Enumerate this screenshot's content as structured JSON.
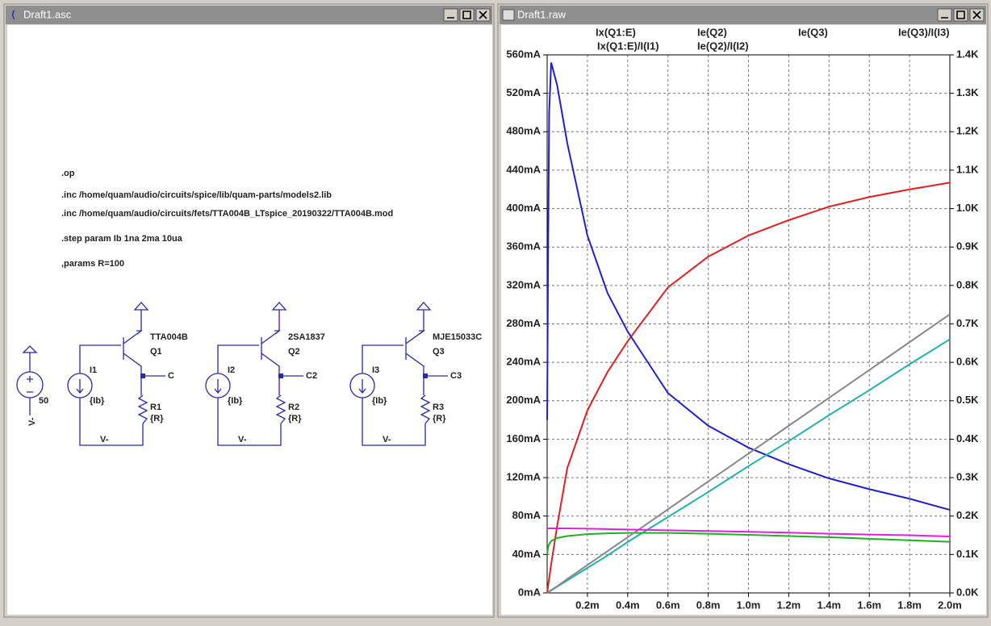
{
  "windows": [
    {
      "title": "Draft1.asc"
    },
    {
      "title": "Draft1.raw"
    }
  ],
  "schematic": {
    "directives": [
      ".op",
      ".inc /home/quam/audio/circuits/spice/lib/quam-parts/models2.lib",
      ".inc /home/quam/audio/circuits/fets/TTA004B_LTspice_20190322/TTA004B.mod",
      ".step param Ib 1na 2ma 10ua",
      ",params R=100"
    ],
    "supply": {
      "value": "50",
      "net": "V-"
    },
    "stages": [
      {
        "transistor": "TTA004B",
        "ref": "Q1",
        "source": "I1",
        "source_value": "{Ib}",
        "resistor": "R1",
        "resistor_value": "{R}",
        "output": "C",
        "ground": "V-"
      },
      {
        "transistor": "2SA1837",
        "ref": "Q2",
        "source": "I2",
        "source_value": "{Ib}",
        "resistor": "R2",
        "resistor_value": "{R}",
        "output": "C2",
        "ground": "V-"
      },
      {
        "transistor": "MJE15033C",
        "ref": "Q3",
        "source": "I3",
        "source_value": "{Ib}",
        "resistor": "R3",
        "resistor_value": "{R}",
        "output": "C3",
        "ground": "V-"
      }
    ]
  },
  "chart_data": {
    "type": "line",
    "x": [
      0,
      0.005,
      0.01,
      0.02,
      0.05,
      0.1,
      0.2,
      0.3,
      0.4,
      0.6,
      0.8,
      1.0,
      1.2,
      1.4,
      1.6,
      1.8,
      2.0
    ],
    "xlim": [
      0,
      2
    ],
    "xticks": [
      {
        "value": 0.2,
        "label": "0.2m"
      },
      {
        "value": 0.4,
        "label": "0.4m"
      },
      {
        "value": 0.6,
        "label": "0.6m"
      },
      {
        "value": 0.8,
        "label": "0.8m"
      },
      {
        "value": 1.0,
        "label": "1.0m"
      },
      {
        "value": 1.2,
        "label": "1.2m"
      },
      {
        "value": 1.4,
        "label": "1.4m"
      },
      {
        "value": 1.6,
        "label": "1.6m"
      },
      {
        "value": 1.8,
        "label": "1.8m"
      },
      {
        "value": 2.0,
        "label": "2.0m"
      }
    ],
    "ylim": [
      0,
      560
    ],
    "yticks": [
      {
        "value": 0,
        "label": "0mA"
      },
      {
        "value": 40,
        "label": "40mA"
      },
      {
        "value": 80,
        "label": "80mA"
      },
      {
        "value": 120,
        "label": "120mA"
      },
      {
        "value": 160,
        "label": "160mA"
      },
      {
        "value": 200,
        "label": "200mA"
      },
      {
        "value": 240,
        "label": "240mA"
      },
      {
        "value": 280,
        "label": "280mA"
      },
      {
        "value": 320,
        "label": "320mA"
      },
      {
        "value": 360,
        "label": "360mA"
      },
      {
        "value": 400,
        "label": "400mA"
      },
      {
        "value": 440,
        "label": "440mA"
      },
      {
        "value": 480,
        "label": "480mA"
      },
      {
        "value": 520,
        "label": "520mA"
      },
      {
        "value": 560,
        "label": "560mA"
      }
    ],
    "y2lim": [
      0,
      1.4
    ],
    "y2ticks": [
      {
        "value": 0,
        "label": "0.0K"
      },
      {
        "value": 0.1,
        "label": "0.1K"
      },
      {
        "value": 0.2,
        "label": "0.2K"
      },
      {
        "value": 0.3,
        "label": "0.3K"
      },
      {
        "value": 0.4,
        "label": "0.4K"
      },
      {
        "value": 0.5,
        "label": "0.5K"
      },
      {
        "value": 0.6,
        "label": "0.6K"
      },
      {
        "value": 0.7,
        "label": "0.7K"
      },
      {
        "value": 0.8,
        "label": "0.8K"
      },
      {
        "value": 0.9,
        "label": "0.9K"
      },
      {
        "value": 1.0,
        "label": "1.0K"
      },
      {
        "value": 1.1,
        "label": "1.1K"
      },
      {
        "value": 1.2,
        "label": "1.2K"
      },
      {
        "value": 1.3,
        "label": "1.3K"
      },
      {
        "value": 1.4,
        "label": "1.4K"
      }
    ],
    "grid": true,
    "series": [
      {
        "name": "Ix(Q1:E)",
        "color": "#e02020",
        "values": [
          0,
          8,
          15,
          30,
          70,
          130,
          190,
          230,
          262,
          318,
          350,
          372,
          388,
          402,
          412,
          420,
          427
        ]
      },
      {
        "name": "Ix(Q1:E)/I(I1)",
        "color": "#2020d0",
        "axis": "y2",
        "values": [
          0.45,
          0.9,
          1.25,
          1.38,
          1.32,
          1.17,
          0.93,
          0.78,
          0.68,
          0.52,
          0.435,
          0.378,
          0.335,
          0.298,
          0.27,
          0.245,
          0.216
        ]
      },
      {
        "name": "Ie(Q2)",
        "color": "#20b0b0",
        "values": [
          0,
          0.7,
          1.3,
          2.6,
          6.6,
          13,
          26,
          39,
          53,
          79,
          105,
          132,
          158,
          185,
          211,
          238,
          264
        ]
      },
      {
        "name": "Ie(Q2)/I(I2)",
        "color": "#20b020",
        "axis": "y2",
        "values": [
          0.1,
          0.12,
          0.127,
          0.135,
          0.143,
          0.148,
          0.153,
          0.155,
          0.156,
          0.156,
          0.154,
          0.151,
          0.148,
          0.145,
          0.141,
          0.137,
          0.133
        ]
      },
      {
        "name": "Ie(Q3)",
        "color": "#888888",
        "values": [
          0,
          0.7,
          1.5,
          3,
          7,
          14.5,
          29,
          43.5,
          58,
          87,
          116,
          145,
          174,
          203,
          232,
          261,
          290
        ]
      },
      {
        "name": "Ie(Q3)/I(I3)",
        "color": "#e020e0",
        "axis": "y2",
        "values": [
          0.168,
          0.168,
          0.168,
          0.168,
          0.168,
          0.168,
          0.167,
          0.166,
          0.165,
          0.163,
          0.161,
          0.159,
          0.157,
          0.154,
          0.152,
          0.15,
          0.147
        ]
      }
    ]
  }
}
